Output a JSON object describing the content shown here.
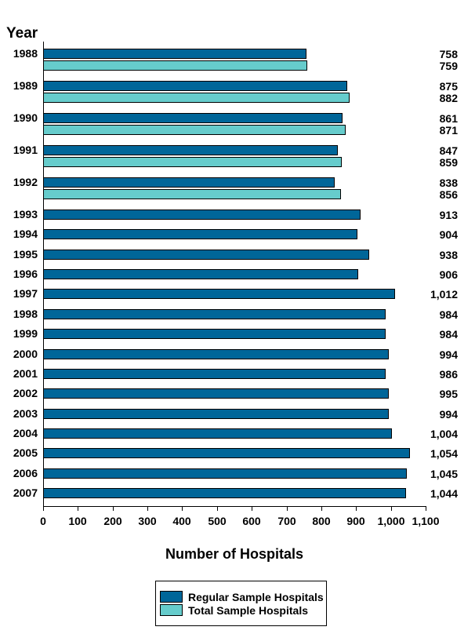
{
  "chart_data": {
    "type": "bar",
    "orientation": "horizontal",
    "y_axis_title": "Year",
    "xlabel": "Number of Hospitals",
    "xlim": [
      0,
      1100
    ],
    "x_tick_interval": 100,
    "x_tick_labels": [
      "0",
      "100",
      "200",
      "300",
      "400",
      "500",
      "600",
      "700",
      "800",
      "900",
      "1,000",
      "1,100"
    ],
    "grid": false,
    "legend_position": "bottom-center",
    "series": [
      {
        "name": "Regular Sample Hospitals",
        "color": "#006699"
      },
      {
        "name": "Total Sample Hospitals",
        "color": "#66CCCC"
      }
    ],
    "rows": [
      {
        "year": "1988",
        "regular": 758,
        "regular_label": "758",
        "total": 759,
        "total_label": "759"
      },
      {
        "year": "1989",
        "regular": 875,
        "regular_label": "875",
        "total": 882,
        "total_label": "882"
      },
      {
        "year": "1990",
        "regular": 861,
        "regular_label": "861",
        "total": 871,
        "total_label": "871"
      },
      {
        "year": "1991",
        "regular": 847,
        "regular_label": "847",
        "total": 859,
        "total_label": "859"
      },
      {
        "year": "1992",
        "regular": 838,
        "regular_label": "838",
        "total": 856,
        "total_label": "856"
      },
      {
        "year": "1993",
        "regular": 913,
        "regular_label": "913"
      },
      {
        "year": "1994",
        "regular": 904,
        "regular_label": "904"
      },
      {
        "year": "1995",
        "regular": 938,
        "regular_label": "938"
      },
      {
        "year": "1996",
        "regular": 906,
        "regular_label": "906"
      },
      {
        "year": "1997",
        "regular": 1012,
        "regular_label": "1,012"
      },
      {
        "year": "1998",
        "regular": 984,
        "regular_label": "984"
      },
      {
        "year": "1999",
        "regular": 984,
        "regular_label": "984"
      },
      {
        "year": "2000",
        "regular": 994,
        "regular_label": "994"
      },
      {
        "year": "2001",
        "regular": 986,
        "regular_label": "986"
      },
      {
        "year": "2002",
        "regular": 995,
        "regular_label": "995"
      },
      {
        "year": "2003",
        "regular": 994,
        "regular_label": "994"
      },
      {
        "year": "2004",
        "regular": 1004,
        "regular_label": "1,004"
      },
      {
        "year": "2005",
        "regular": 1054,
        "regular_label": "1,054"
      },
      {
        "year": "2006",
        "regular": 1045,
        "regular_label": "1,045"
      },
      {
        "year": "2007",
        "regular": 1044,
        "regular_label": "1,044"
      }
    ]
  },
  "colors": {
    "background": "#ffffff",
    "axis": "#000000",
    "text": "#000000",
    "bar_regular": "#006699",
    "bar_total": "#66CCCC"
  }
}
